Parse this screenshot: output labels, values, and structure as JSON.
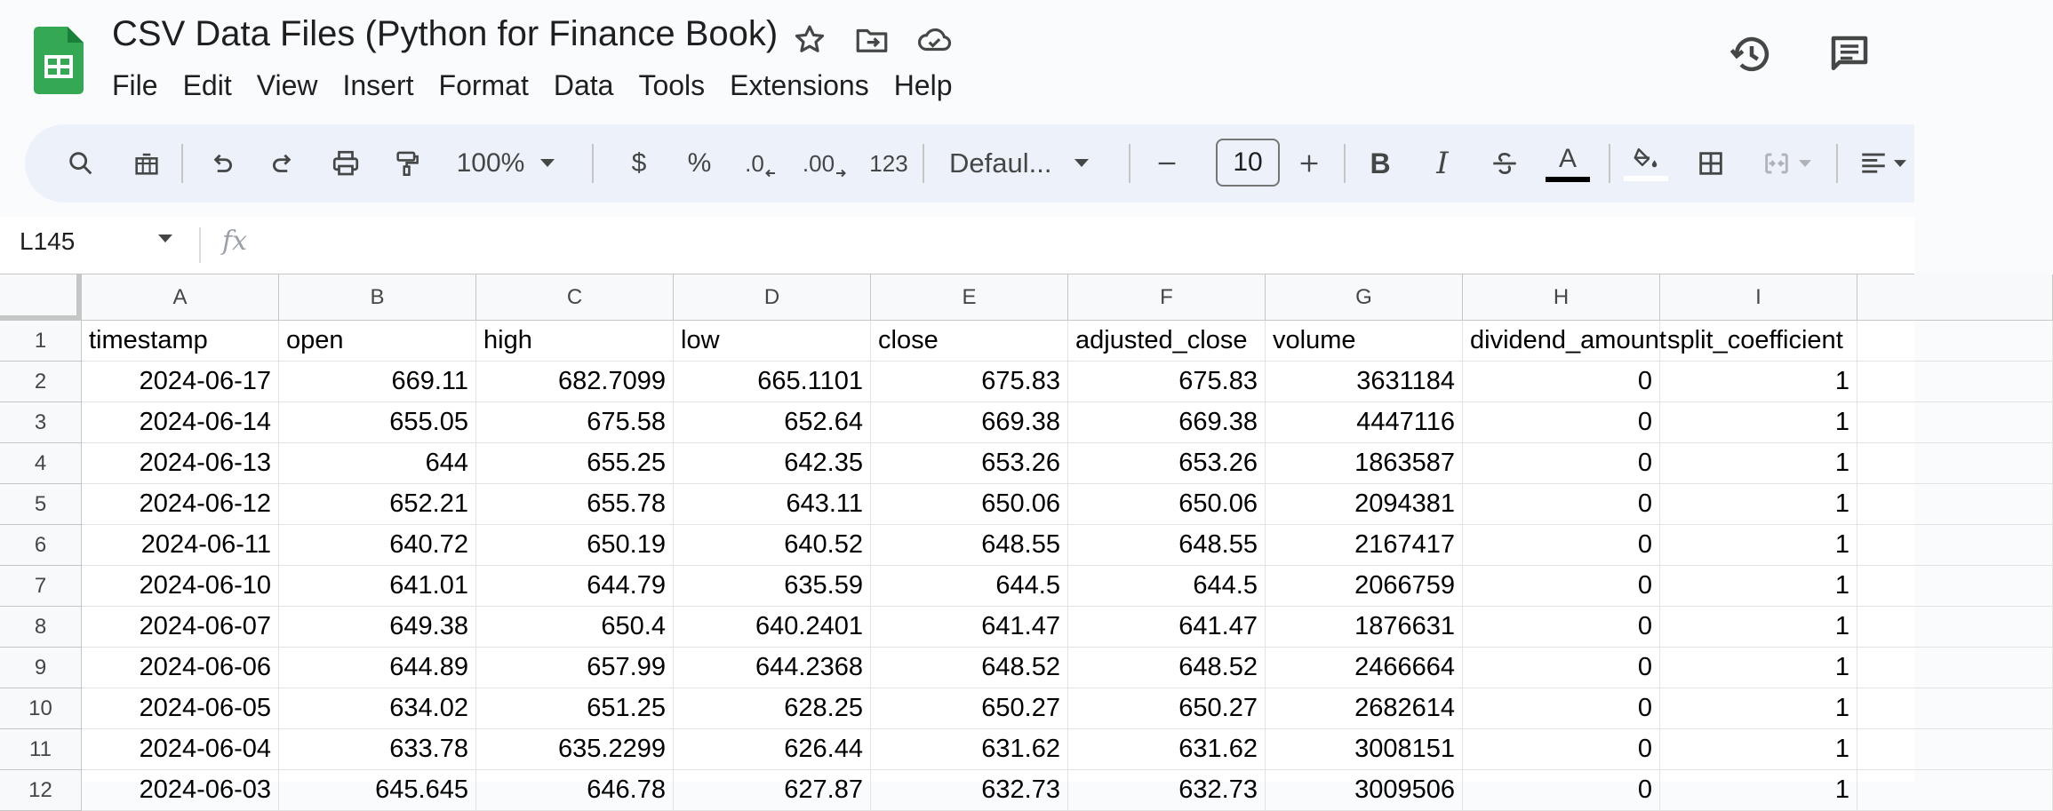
{
  "header": {
    "doc_title": "CSV Data Files (Python for Finance Book)",
    "menu": [
      "File",
      "Edit",
      "View",
      "Insert",
      "Format",
      "Data",
      "Tools",
      "Extensions",
      "Help"
    ],
    "icons": [
      "sheets-logo-icon",
      "star-icon",
      "move-folder-icon",
      "cloud-saved-icon",
      "version-history-icon",
      "comments-icon"
    ]
  },
  "toolbar": {
    "zoom": "100%",
    "currency": "$",
    "percent": "%",
    "decrease_decimal": ".0",
    "increase_decimal": ".00",
    "more_formats": "123",
    "font": "Defaul...",
    "font_size": "10",
    "text_color": "#000000",
    "fill_color": "#ffffff"
  },
  "formula_bar": {
    "name_box": "L145",
    "fx": "fx",
    "value": ""
  },
  "grid": {
    "columns": [
      "A",
      "B",
      "C",
      "D",
      "E",
      "F",
      "G",
      "H",
      "I",
      ""
    ],
    "row_numbers": [
      "1",
      "2",
      "3",
      "4",
      "5",
      "6",
      "7",
      "8",
      "9",
      "10",
      "11",
      "12"
    ],
    "rows": [
      [
        "timestamp",
        "open",
        "high",
        "low",
        "close",
        "adjusted_close",
        "volume",
        "dividend_amount",
        "split_coefficient",
        ""
      ],
      [
        "2024-06-17",
        "669.11",
        "682.7099",
        "665.1101",
        "675.83",
        "675.83",
        "3631184",
        "0",
        "1",
        ""
      ],
      [
        "2024-06-14",
        "655.05",
        "675.58",
        "652.64",
        "669.38",
        "669.38",
        "4447116",
        "0",
        "1",
        ""
      ],
      [
        "2024-06-13",
        "644",
        "655.25",
        "642.35",
        "653.26",
        "653.26",
        "1863587",
        "0",
        "1",
        ""
      ],
      [
        "2024-06-12",
        "652.21",
        "655.78",
        "643.11",
        "650.06",
        "650.06",
        "2094381",
        "0",
        "1",
        ""
      ],
      [
        "2024-06-11",
        "640.72",
        "650.19",
        "640.52",
        "648.55",
        "648.55",
        "2167417",
        "0",
        "1",
        ""
      ],
      [
        "2024-06-10",
        "641.01",
        "644.79",
        "635.59",
        "644.5",
        "644.5",
        "2066759",
        "0",
        "1",
        ""
      ],
      [
        "2024-06-07",
        "649.38",
        "650.4",
        "640.2401",
        "641.47",
        "641.47",
        "1876631",
        "0",
        "1",
        ""
      ],
      [
        "2024-06-06",
        "644.89",
        "657.99",
        "644.2368",
        "648.52",
        "648.52",
        "2466664",
        "0",
        "1",
        ""
      ],
      [
        "2024-06-05",
        "634.02",
        "651.25",
        "628.25",
        "650.27",
        "650.27",
        "2682614",
        "0",
        "1",
        ""
      ],
      [
        "2024-06-04",
        "633.78",
        "635.2299",
        "626.44",
        "631.62",
        "631.62",
        "3008151",
        "0",
        "1",
        ""
      ],
      [
        "2024-06-03",
        "645.645",
        "646.78",
        "627.87",
        "632.73",
        "632.73",
        "3009506",
        "0",
        "1",
        ""
      ]
    ]
  }
}
